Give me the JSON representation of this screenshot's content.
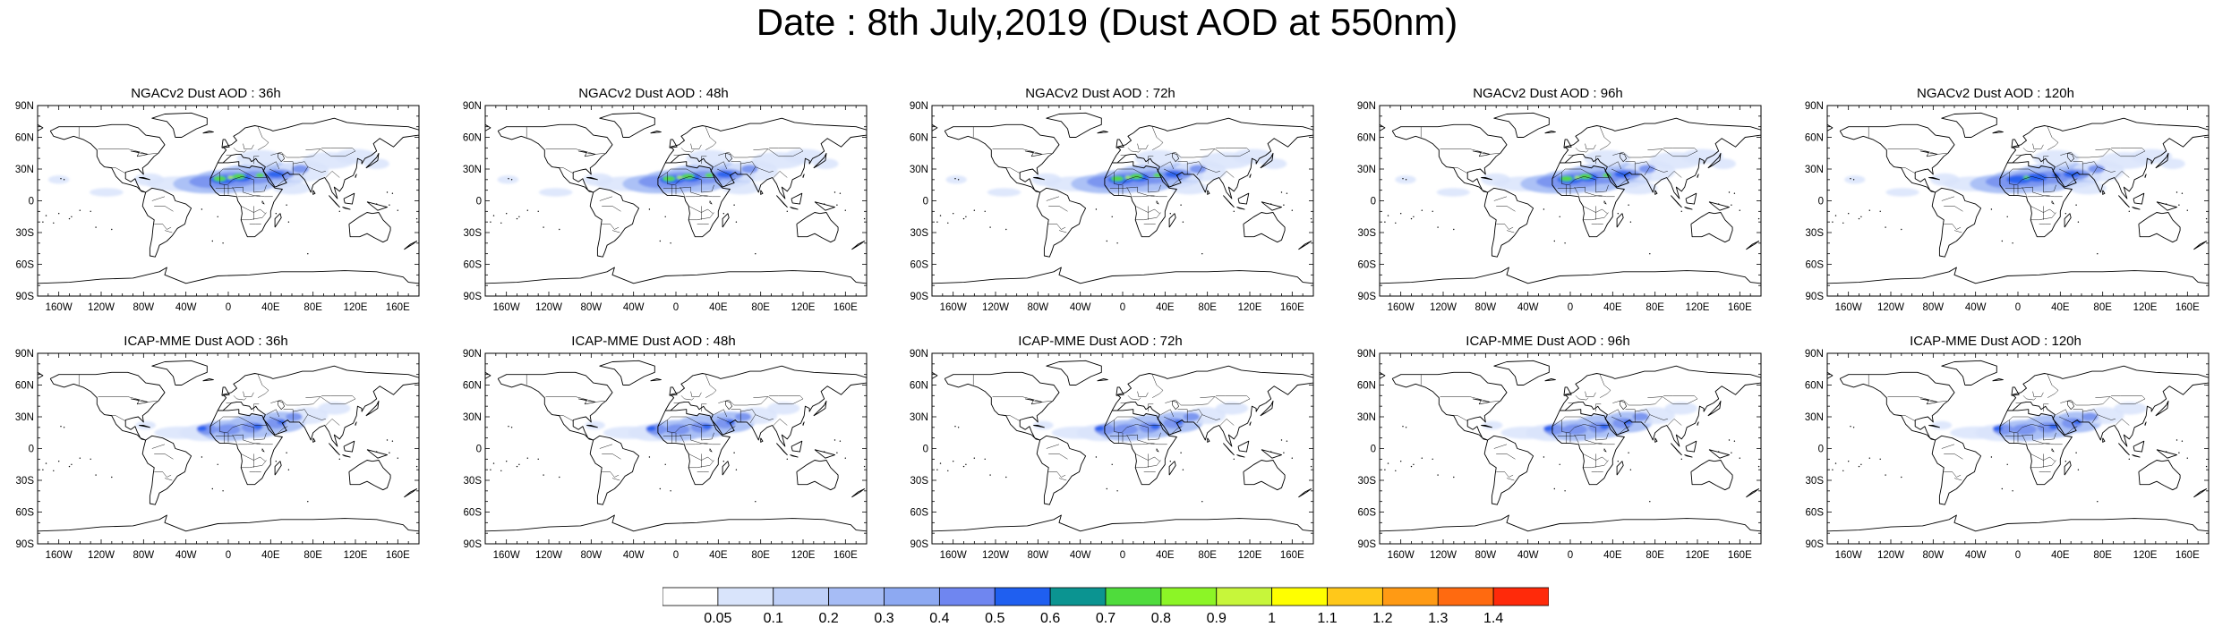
{
  "title": "Date : 8th July,2019 (Dust AOD at 550nm)",
  "axes": {
    "lat_ticks": [
      "90N",
      "60N",
      "30N",
      "0",
      "30S",
      "60S",
      "90S"
    ],
    "lon_ticks": [
      "160W",
      "120W",
      "80W",
      "40W",
      "0",
      "40E",
      "80E",
      "120E",
      "160E"
    ]
  },
  "panels": [
    {
      "id": "ngac-36",
      "title": "NGACv2 Dust AOD : 36h",
      "model": "ngac",
      "intensity": 1.0
    },
    {
      "id": "ngac-48",
      "title": "NGACv2 Dust AOD : 48h",
      "model": "ngac",
      "intensity": 0.95
    },
    {
      "id": "ngac-72",
      "title": "NGACv2 Dust AOD : 72h",
      "model": "ngac",
      "intensity": 0.9
    },
    {
      "id": "ngac-96",
      "title": "NGACv2 Dust AOD : 96h",
      "model": "ngac",
      "intensity": 0.85
    },
    {
      "id": "ngac-120",
      "title": "NGACv2 Dust AOD : 120h",
      "model": "ngac",
      "intensity": 0.8
    },
    {
      "id": "icap-36",
      "title": "ICAP-MME Dust AOD : 36h",
      "model": "icap",
      "intensity": 0.6
    },
    {
      "id": "icap-48",
      "title": "ICAP-MME Dust AOD : 48h",
      "model": "icap",
      "intensity": 0.62
    },
    {
      "id": "icap-72",
      "title": "ICAP-MME Dust AOD : 72h",
      "model": "icap",
      "intensity": 0.62
    },
    {
      "id": "icap-96",
      "title": "ICAP-MME Dust AOD : 96h",
      "model": "icap",
      "intensity": 0.65
    },
    {
      "id": "icap-120",
      "title": "ICAP-MME Dust AOD : 120h",
      "model": "icap",
      "intensity": 0.63
    }
  ],
  "colorbar": {
    "labels": [
      "0.05",
      "0.1",
      "0.2",
      "0.3",
      "0.4",
      "0.5",
      "0.6",
      "0.7",
      "0.8",
      "0.9",
      "1",
      "1.1",
      "1.2",
      "1.3",
      "1.4"
    ],
    "colors": [
      "#ffffff",
      "#d9e4fb",
      "#bfd0f8",
      "#a6bcf5",
      "#8da9f2",
      "#6f86f0",
      "#1f5ff0",
      "#0b9491",
      "#4fdc3c",
      "#8cf526",
      "#c7f63a",
      "#ffff00",
      "#ffc81a",
      "#ff9a14",
      "#ff6a10",
      "#ff2a0a"
    ]
  }
}
